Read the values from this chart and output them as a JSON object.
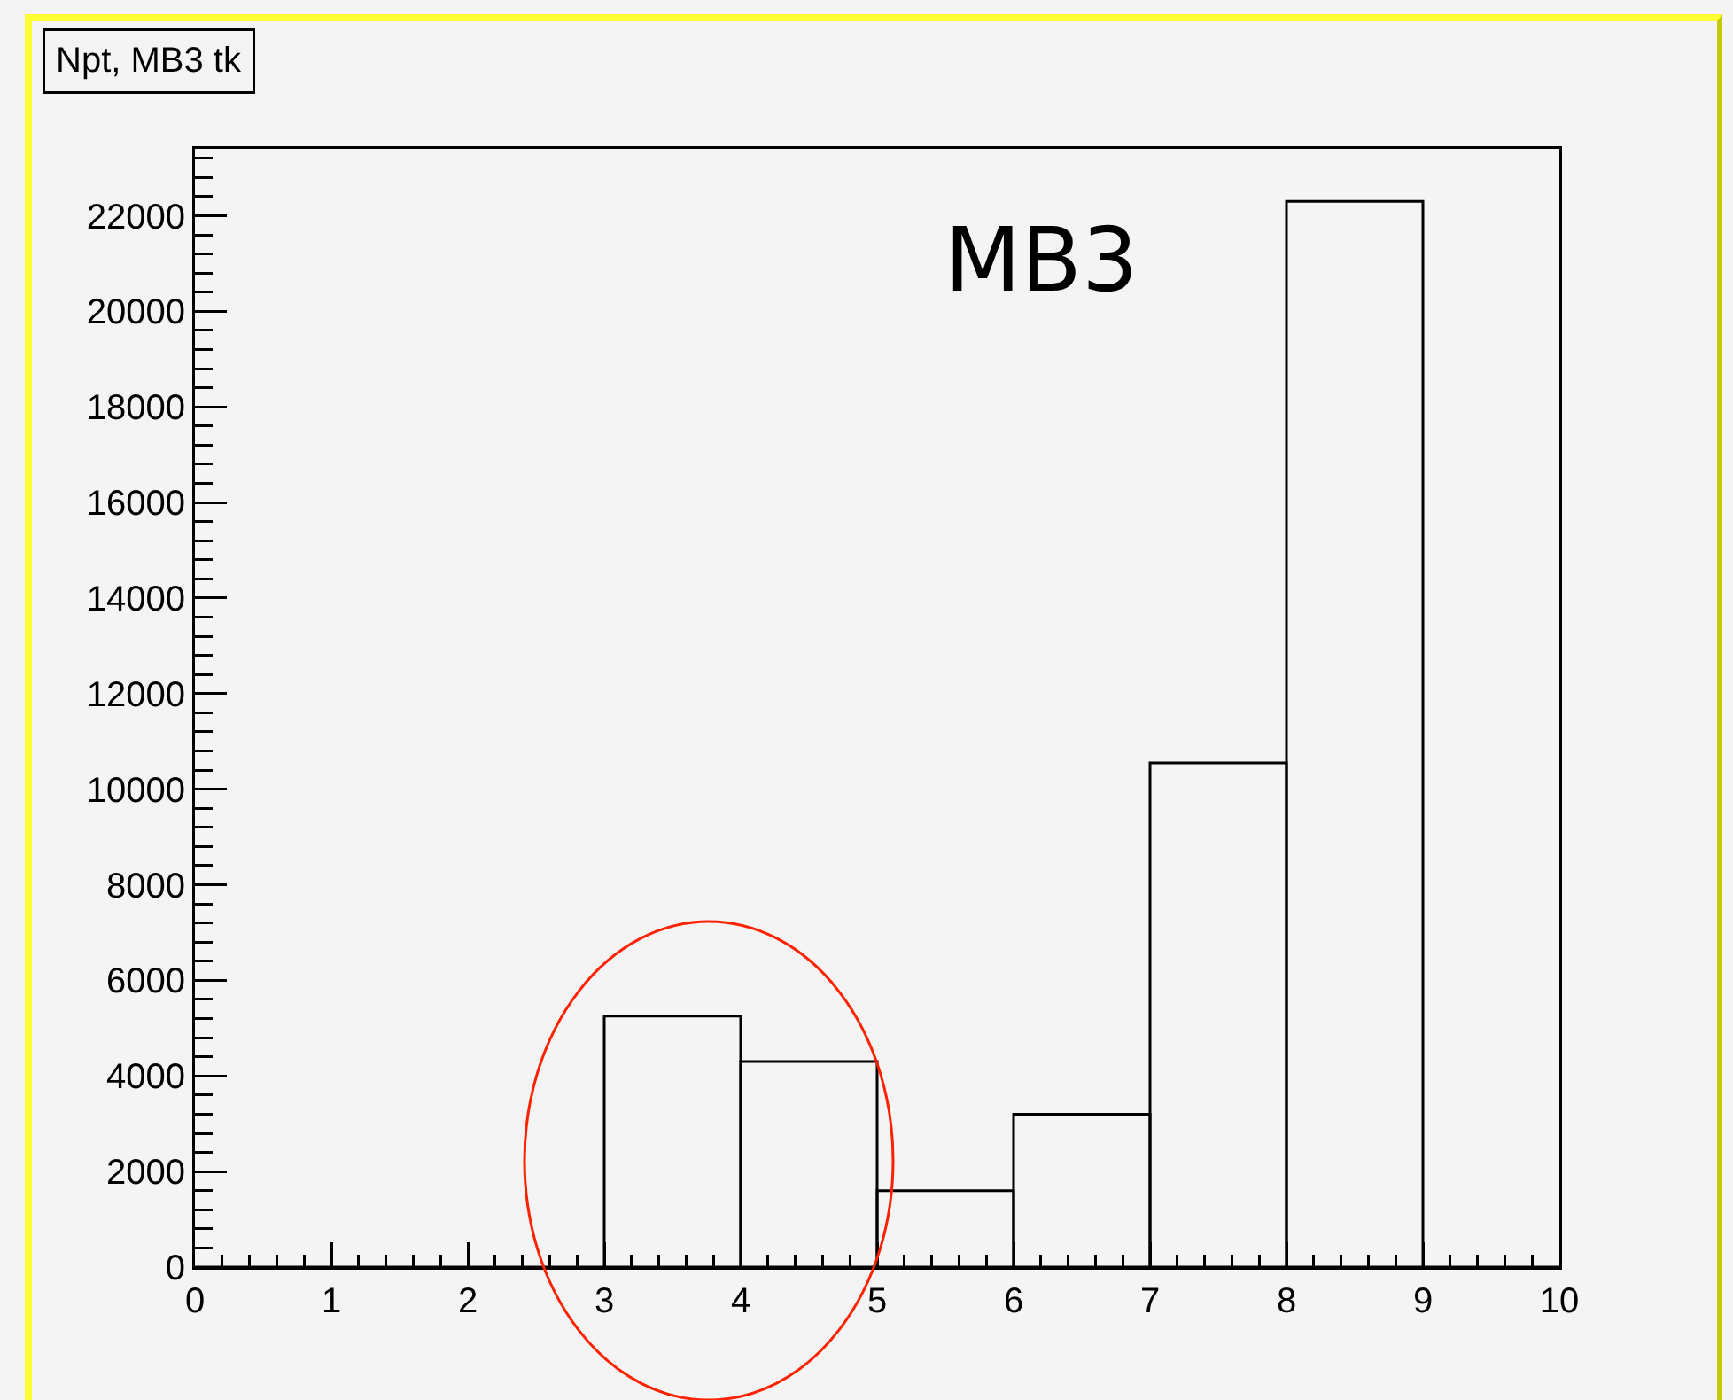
{
  "chart_data": {
    "type": "histogram",
    "title": "Npt, MB3 tk",
    "bins": [
      0,
      1,
      2,
      3,
      4,
      5,
      6,
      7,
      8,
      9,
      10
    ],
    "values": [
      0,
      0,
      0,
      5250,
      4300,
      1600,
      3200,
      10550,
      22300,
      0
    ],
    "color": "#000000",
    "xlim": [
      0,
      10
    ],
    "xticks": [
      0,
      1,
      2,
      3,
      4,
      5,
      6,
      7,
      8,
      9,
      10
    ],
    "ylim": [
      0,
      23400
    ],
    "yticks": [
      0,
      2000,
      4000,
      6000,
      8000,
      10000,
      12000,
      14000,
      16000,
      18000,
      20000,
      22000
    ],
    "annotations": [
      "MB3"
    ]
  }
}
